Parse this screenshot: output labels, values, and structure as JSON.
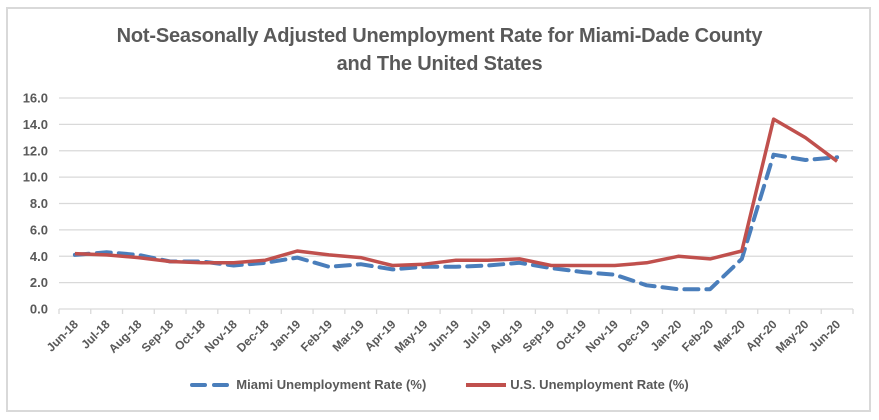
{
  "chart_data": {
    "type": "line",
    "title": [
      "Not-Seasonally Adjusted Unemployment Rate for Miami-Dade County",
      "and The United States"
    ],
    "xlabel": "",
    "ylabel": "",
    "ylim": [
      0,
      16
    ],
    "yticks": [
      "0.0",
      "2.0",
      "4.0",
      "6.0",
      "8.0",
      "10.0",
      "12.0",
      "14.0",
      "16.0"
    ],
    "ytick_values": [
      0,
      2,
      4,
      6,
      8,
      10,
      12,
      14,
      16
    ],
    "grid": true,
    "legend_position": "bottom",
    "categories": [
      "Jun-18",
      "Jul-18",
      "Aug-18",
      "Sep-18",
      "Oct-18",
      "Nov-18",
      "Dec-18",
      "Jan-19",
      "Feb-19",
      "Mar-19",
      "Apr-19",
      "May-19",
      "Jun-19",
      "Jul-19",
      "Aug-19",
      "Sep-19",
      "Oct-19",
      "Nov-19",
      "Dec-19",
      "Jan-20",
      "Feb-20",
      "Mar-20",
      "Apr-20",
      "May-20",
      "Jun-20"
    ],
    "series": [
      {
        "name": "Miami Unemployment Rate (%)",
        "color": "#4a7ebb",
        "style": "dashed",
        "values": [
          4.1,
          4.3,
          4.1,
          3.6,
          3.6,
          3.3,
          3.5,
          3.9,
          3.2,
          3.4,
          3.0,
          3.2,
          3.2,
          3.3,
          3.5,
          3.1,
          2.8,
          2.6,
          1.8,
          1.5,
          1.5,
          3.8,
          11.7,
          11.3,
          11.5
        ]
      },
      {
        "name": "U.S. Unemployment Rate (%)",
        "color": "#c0504d",
        "style": "solid",
        "values": [
          4.2,
          4.1,
          3.9,
          3.6,
          3.5,
          3.5,
          3.7,
          4.4,
          4.1,
          3.9,
          3.3,
          3.4,
          3.7,
          3.7,
          3.8,
          3.3,
          3.3,
          3.3,
          3.5,
          4.0,
          3.8,
          4.4,
          14.4,
          13.0,
          11.2
        ]
      }
    ]
  }
}
